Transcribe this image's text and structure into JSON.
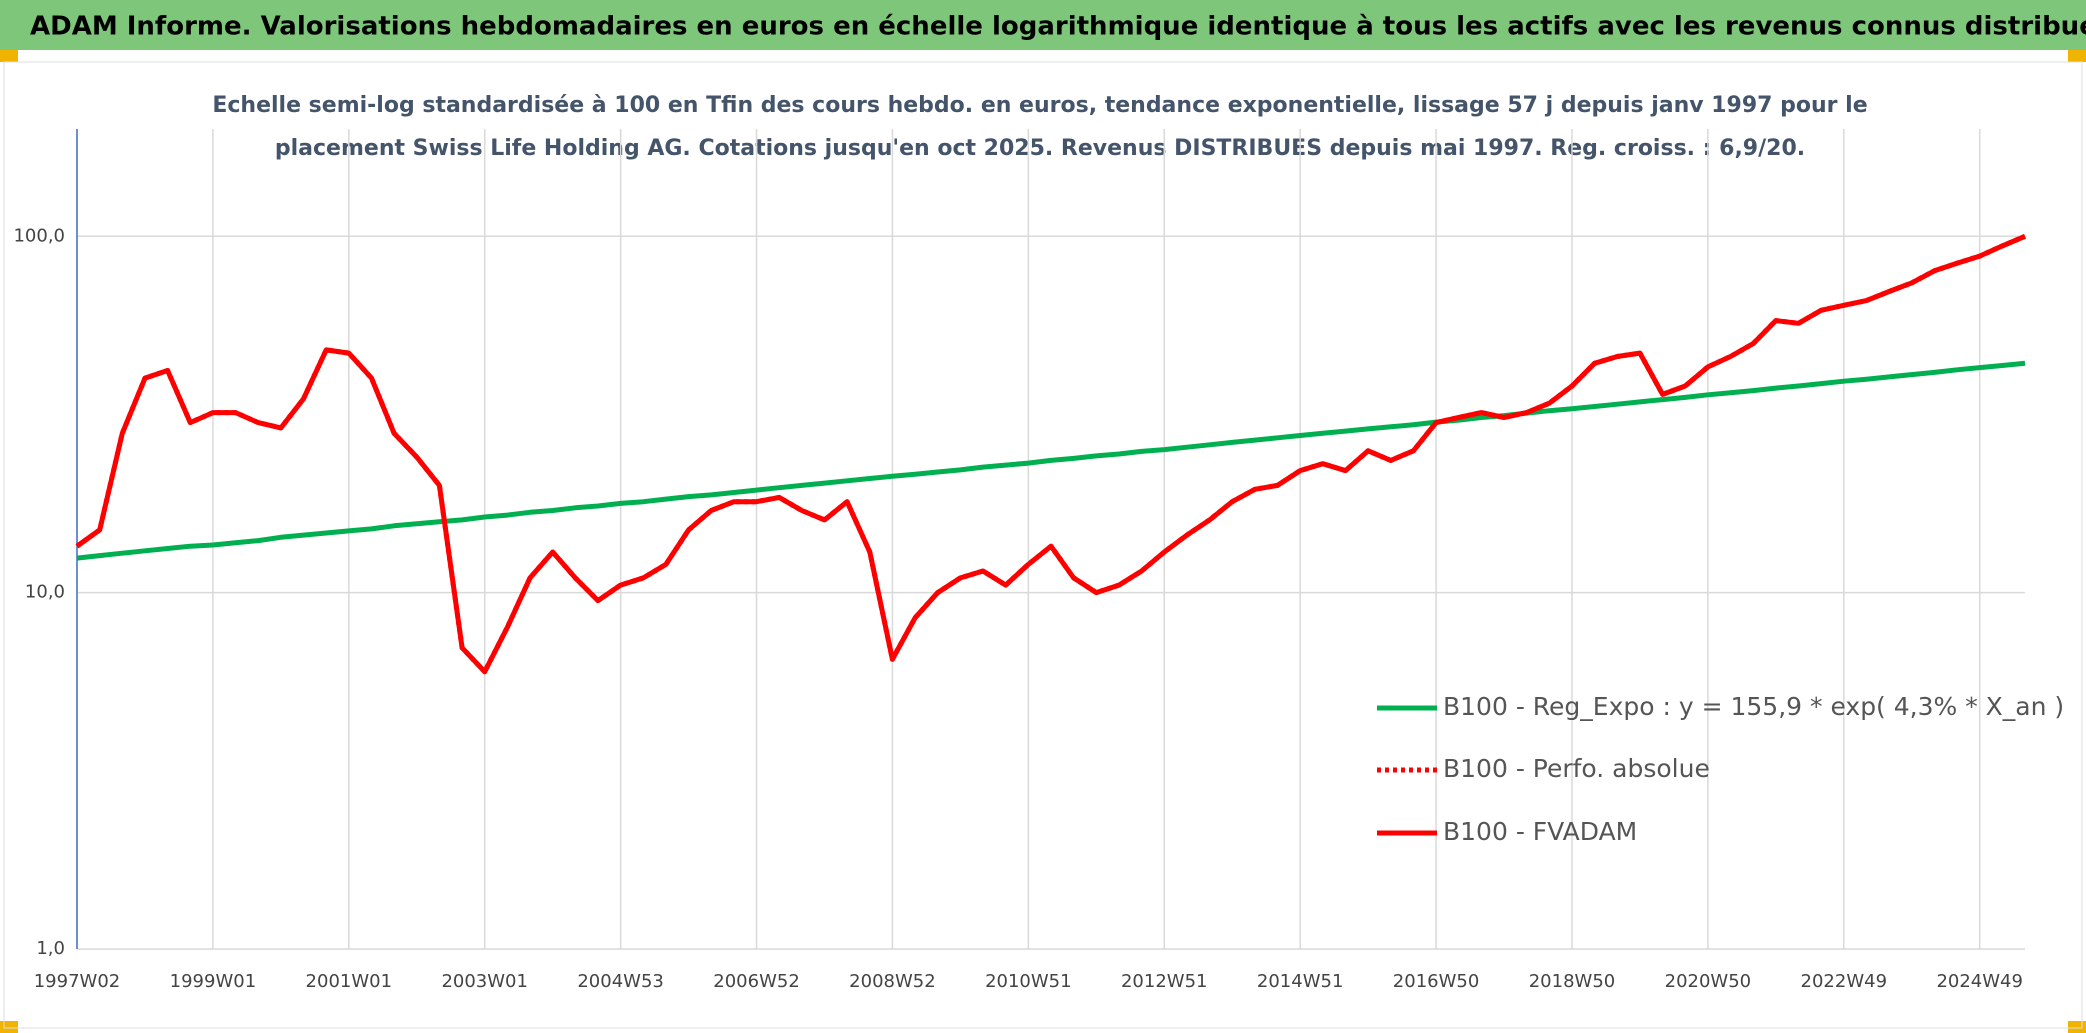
{
  "chart_data": {
    "type": "line",
    "title": "ADAM Informe. Valorisations hebdomadaires en euros en échelle logarithmique identique à tous les actifs avec les revenus connus distribués",
    "subtitle": [
      "Echelle semi-log standardisée à 100 en Tfin des cours hebdo. en euros, tendance exponentielle, lissage 57 j depuis janv 1997 pour le",
      "placement Swiss Life Holding AG. Cotations jusqu'en oct 2025. Revenus DISTRIBUES depuis mai 1997. Reg. croiss. : 6,9/20."
    ],
    "categories": [
      "1997W02",
      null,
      null,
      null,
      null,
      null,
      "1999W01",
      null,
      null,
      null,
      null,
      null,
      "2001W01",
      null,
      null,
      null,
      null,
      null,
      "2003W01",
      null,
      null,
      null,
      null,
      null,
      "2004W53",
      null,
      null,
      null,
      null,
      null,
      "2006W52",
      null,
      null,
      null,
      null,
      null,
      "2008W52",
      null,
      null,
      null,
      null,
      null,
      "2010W51",
      null,
      null,
      null,
      null,
      null,
      "2012W51",
      null,
      null,
      null,
      null,
      null,
      "2014W51",
      null,
      null,
      null,
      null,
      null,
      "2016W50",
      null,
      null,
      null,
      null,
      null,
      "2018W50",
      null,
      null,
      null,
      null,
      null,
      "2020W50",
      null,
      null,
      null,
      null,
      null,
      "2022W49",
      null,
      null,
      null,
      null,
      null,
      "2024W49",
      null,
      null
    ],
    "series": [
      {
        "name": "B100 - Reg_Expo : y = 155,9 * exp( 4,3% *  X_an )",
        "color": "#00b050",
        "style": "solid",
        "values": [
          12.5,
          12.7,
          12.9,
          13.1,
          13.3,
          13.5,
          13.6,
          13.8,
          14.0,
          14.3,
          14.5,
          14.7,
          14.9,
          15.1,
          15.4,
          15.6,
          15.8,
          16.0,
          16.3,
          16.5,
          16.8,
          17.0,
          17.3,
          17.5,
          17.8,
          18.0,
          18.3,
          18.6,
          18.8,
          19.1,
          19.4,
          19.7,
          20.0,
          20.3,
          20.6,
          20.9,
          21.2,
          21.5,
          21.8,
          22.1,
          22.5,
          22.8,
          23.1,
          23.5,
          23.8,
          24.2,
          24.5,
          24.9,
          25.2,
          25.6,
          26.0,
          26.4,
          26.8,
          27.2,
          27.6,
          28.0,
          28.4,
          28.8,
          29.2,
          29.6,
          30.1,
          30.5,
          31.0,
          31.4,
          31.9,
          32.4,
          32.8,
          33.3,
          33.8,
          34.3,
          34.8,
          35.3,
          35.9,
          36.4,
          36.9,
          37.5,
          38.0,
          38.6,
          39.2,
          39.7,
          40.3,
          40.9,
          41.5,
          42.2,
          42.8,
          43.4,
          44.0
        ]
      },
      {
        "name": "B100 - Perfo. absolue",
        "color": "#ff0000",
        "style": "dotted",
        "values": [
          13.5,
          15,
          28,
          40,
          42,
          30,
          32,
          32,
          30,
          29,
          35,
          48,
          47,
          40,
          28,
          24,
          20,
          7,
          6,
          8,
          11,
          13,
          11,
          9.5,
          10.5,
          11,
          12,
          15,
          17,
          18,
          18,
          18.5,
          17,
          16,
          18,
          13,
          6.5,
          8.5,
          10,
          11,
          11.5,
          10.5,
          12,
          13.5,
          11,
          10,
          10.5,
          11.5,
          13,
          14.5,
          16,
          18,
          19.5,
          20,
          22,
          23,
          22,
          25,
          23.5,
          25,
          30,
          31,
          32,
          31,
          32,
          34,
          38,
          44,
          46,
          47,
          36,
          38,
          43,
          46,
          50,
          58,
          57,
          62,
          64,
          66,
          70,
          74,
          80,
          84,
          88,
          94,
          100
        ]
      },
      {
        "name": "B100 - FVADAM",
        "color": "#ff0000",
        "style": "solid",
        "values": [
          13.5,
          15,
          28,
          40,
          42,
          30,
          32,
          32,
          30,
          29,
          35,
          48,
          47,
          40,
          28,
          24,
          20,
          7,
          6,
          8,
          11,
          13,
          11,
          9.5,
          10.5,
          11,
          12,
          15,
          17,
          18,
          18,
          18.5,
          17,
          16,
          18,
          13,
          6.5,
          8.5,
          10,
          11,
          11.5,
          10.5,
          12,
          13.5,
          11,
          10,
          10.5,
          11.5,
          13,
          14.5,
          16,
          18,
          19.5,
          20,
          22,
          23,
          22,
          25,
          23.5,
          25,
          30,
          31,
          32,
          31,
          32,
          34,
          38,
          44,
          46,
          47,
          36,
          38,
          43,
          46,
          50,
          58,
          57,
          62,
          64,
          66,
          70,
          74,
          80,
          84,
          88,
          94,
          100
        ]
      }
    ],
    "ylim": [
      1,
      200
    ],
    "yticks": [
      {
        "value": 1,
        "label": "1,0"
      },
      {
        "value": 10,
        "label": "10,0"
      },
      {
        "value": 100,
        "label": "100,0"
      }
    ],
    "log_scale": true,
    "grid": true,
    "legend": "right"
  }
}
